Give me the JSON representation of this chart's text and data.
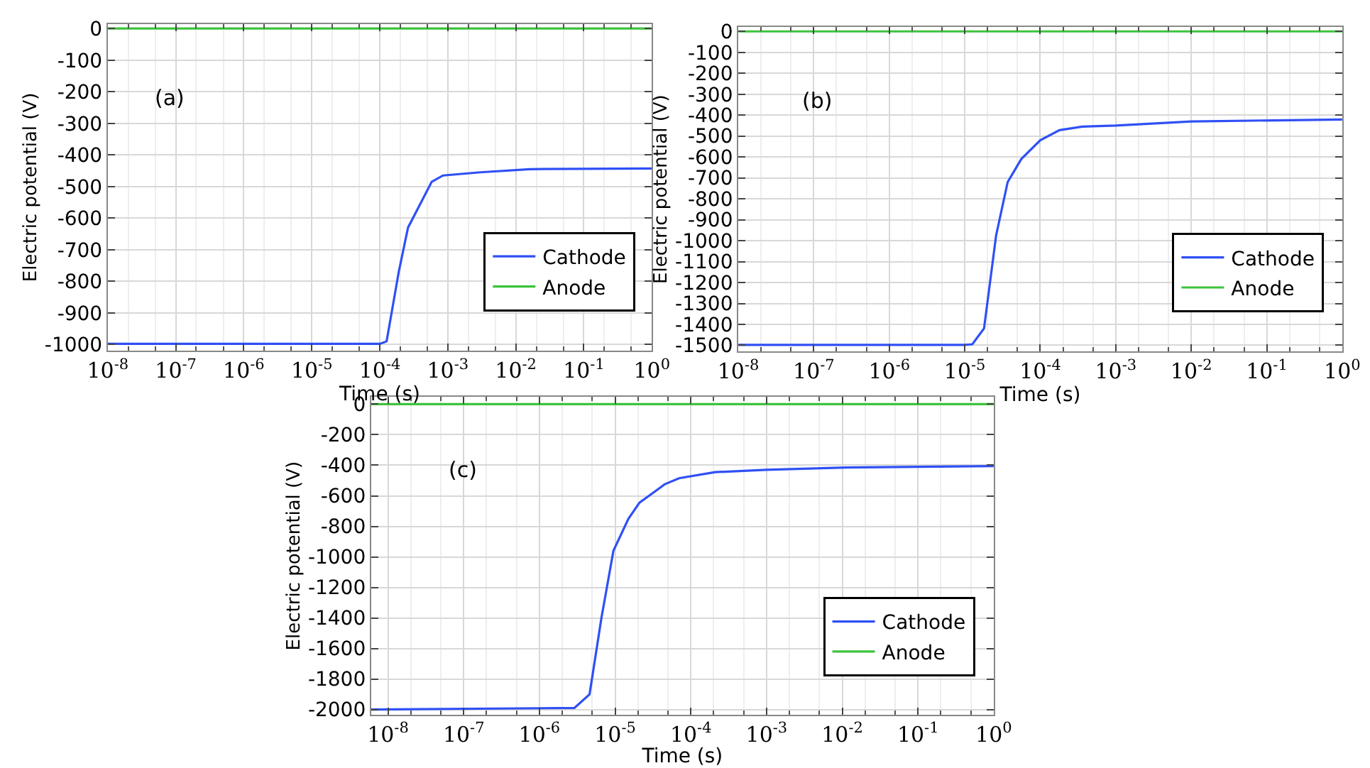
{
  "chart_data": [
    {
      "type": "line",
      "annotations": [
        "(a)"
      ],
      "xlabel": "Time (s)",
      "ylabel": "Electric potential (V)",
      "log": "x",
      "grid": true,
      "legend": "bottom right",
      "line_style": "solid",
      "marker": "none",
      "xlim": [
        1e-08,
        1
      ],
      "ylim": [
        -1020,
        15
      ],
      "xticks": [
        {
          "value": 1e-08,
          "label": "10$^{-8}$"
        },
        {
          "value": 1e-07,
          "label": "10$^{-7}$"
        },
        {
          "value": 1e-06,
          "label": "10$^{-6}$"
        },
        {
          "value": 1e-05,
          "label": "10$^{-5}$"
        },
        {
          "value": 0.0001,
          "label": "10$^{-4}$"
        },
        {
          "value": 0.001,
          "label": "10$^{-3}$"
        },
        {
          "value": 0.01,
          "label": "10$^{-2}$"
        },
        {
          "value": 0.1,
          "label": "10$^{-1}$"
        },
        {
          "value": 1,
          "label": "10$^{0}$"
        }
      ],
      "yticks": [
        0,
        -100,
        -200,
        -300,
        -400,
        -500,
        -600,
        -700,
        -800,
        -900,
        -1000
      ],
      "series": [
        {
          "name": "Cathode",
          "color": "#2f50f5",
          "x": [
            1e-08,
            0.0001,
            0.000126,
            0.00019,
            0.00026,
            0.00058,
            0.00085,
            0.003,
            0.016,
            1
          ],
          "values": [
            -998,
            -998,
            -990,
            -770,
            -630,
            -485,
            -465,
            -455,
            -445,
            -443
          ]
        },
        {
          "name": "Anode",
          "color": "#3cc43c",
          "x": [
            1e-08,
            1
          ],
          "values": [
            0,
            0
          ]
        }
      ]
    },
    {
      "type": "line",
      "annotations": [
        "(b)"
      ],
      "xlabel": "Time (s)",
      "ylabel": "Electric potential (V)",
      "log": "x",
      "grid": true,
      "legend": "bottom right",
      "line_style": "solid",
      "marker": "none",
      "xlim": [
        1e-08,
        1
      ],
      "ylim": [
        -1530,
        22
      ],
      "xticks": [
        {
          "value": 1e-08,
          "label": "10$^{-8}$"
        },
        {
          "value": 1e-07,
          "label": "10$^{-7}$"
        },
        {
          "value": 1e-06,
          "label": "10$^{-6}$"
        },
        {
          "value": 1e-05,
          "label": "10$^{-5}$"
        },
        {
          "value": 0.0001,
          "label": "10$^{-4}$"
        },
        {
          "value": 0.001,
          "label": "10$^{-3}$"
        },
        {
          "value": 0.01,
          "label": "10$^{-2}$"
        },
        {
          "value": 0.1,
          "label": "10$^{-1}$"
        },
        {
          "value": 1,
          "label": "10$^{0}$"
        }
      ],
      "yticks": [
        0,
        -100,
        -200,
        -300,
        -400,
        -500,
        -600,
        -700,
        -800,
        -900,
        -1000,
        -1100,
        -1200,
        -1300,
        -1400,
        -1500
      ],
      "series": [
        {
          "name": "Cathode",
          "color": "#2f50f5",
          "x": [
            1e-08,
            1e-05,
            1.26e-05,
            1.8e-05,
            2.6e-05,
            3.7e-05,
            5.6e-05,
            0.0001,
            0.00018,
            0.00036,
            0.001,
            0.01,
            1
          ],
          "values": [
            -1498,
            -1498,
            -1495,
            -1419,
            -975,
            -720,
            -610,
            -520,
            -472,
            -455,
            -450,
            -430,
            -421
          ]
        },
        {
          "name": "Anode",
          "color": "#3cc43c",
          "x": [
            1e-08,
            1
          ],
          "values": [
            0,
            0
          ]
        }
      ]
    },
    {
      "type": "line",
      "annotations": [
        "(c)"
      ],
      "xlabel": "Time (s)",
      "ylabel": "Electric potential (V)",
      "log": "x",
      "grid": true,
      "legend": "bottom right",
      "line_style": "solid",
      "marker": "none",
      "xlim": [
        6e-09,
        1
      ],
      "ylim": [
        -2035,
        48
      ],
      "xticks": [
        {
          "value": 1e-08,
          "label": "10$^{-8}$"
        },
        {
          "value": 1e-07,
          "label": "10$^{-7}$"
        },
        {
          "value": 1e-06,
          "label": "10$^{-6}$"
        },
        {
          "value": 1e-05,
          "label": "10$^{-5}$"
        },
        {
          "value": 0.0001,
          "label": "10$^{-4}$"
        },
        {
          "value": 0.001,
          "label": "10$^{-3}$"
        },
        {
          "value": 0.01,
          "label": "10$^{-2}$"
        },
        {
          "value": 0.1,
          "label": "10$^{-1}$"
        },
        {
          "value": 1,
          "label": "10$^{0}$"
        }
      ],
      "yticks": [
        0,
        -200,
        -400,
        -600,
        -800,
        -1000,
        -1200,
        -1400,
        -1600,
        -1800,
        -2000
      ],
      "series": [
        {
          "name": "Cathode",
          "color": "#2f50f5",
          "x": [
            6e-09,
            2.9e-06,
            4.6e-06,
            6.6e-06,
            9.5e-06,
            1.5e-05,
            2.1e-05,
            3.4e-05,
            4.5e-05,
            7e-05,
            0.00021,
            0.001,
            0.0115,
            1
          ],
          "values": [
            -2000,
            -1990,
            -1900,
            -1400,
            -960,
            -750,
            -645,
            -570,
            -525,
            -485,
            -445,
            -430,
            -415,
            -405
          ]
        },
        {
          "name": "Anode",
          "color": "#3cc43c",
          "x": [
            6e-09,
            1
          ],
          "values": [
            0,
            0
          ]
        }
      ]
    }
  ]
}
